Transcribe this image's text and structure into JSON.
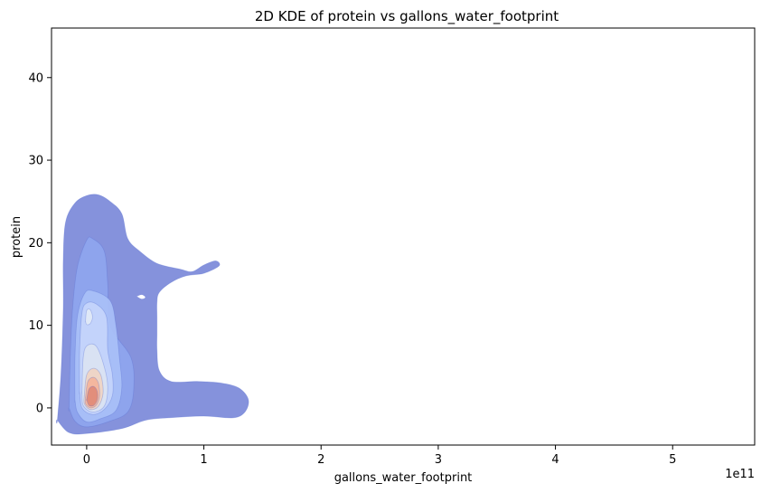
{
  "chart_data": {
    "type": "heatmap",
    "title": "2D KDE of protein vs gallons_water_footprint",
    "xlabel": "gallons_water_footprint",
    "ylabel": "protein",
    "x_offset_label": "1e11",
    "xlim": [
      -0.3,
      5.7
    ],
    "ylim": [
      -4.5,
      46
    ],
    "x_ticks": [
      0,
      1,
      2,
      3,
      4,
      5
    ],
    "y_ticks": [
      0,
      10,
      20,
      30,
      40
    ],
    "colormap": "coolwarm",
    "filled_contours": true,
    "grid": false,
    "contour_levels": [
      {
        "level": 1,
        "color": "#7b89d9",
        "points": [
          [
            -0.25,
            -1.5
          ],
          [
            -0.22,
            4
          ],
          [
            -0.2,
            12
          ],
          [
            -0.2,
            18
          ],
          [
            -0.18,
            22.5
          ],
          [
            -0.1,
            24.8
          ],
          [
            0,
            25.7
          ],
          [
            0.1,
            25.8
          ],
          [
            0.2,
            25
          ],
          [
            0.3,
            23.5
          ],
          [
            0.35,
            20.5
          ],
          [
            0.45,
            19
          ],
          [
            0.6,
            17.5
          ],
          [
            0.8,
            16.8
          ],
          [
            0.9,
            16.5
          ],
          [
            1.0,
            17.3
          ],
          [
            1.1,
            17.8
          ],
          [
            1.13,
            17.2
          ],
          [
            1.0,
            16.3
          ],
          [
            0.85,
            16
          ],
          [
            0.72,
            15.2
          ],
          [
            0.62,
            14
          ],
          [
            0.6,
            12.8
          ],
          [
            0.6,
            11
          ],
          [
            0.6,
            9
          ],
          [
            0.6,
            7
          ],
          [
            0.62,
            4.5
          ],
          [
            0.72,
            3.2
          ],
          [
            0.95,
            3.2
          ],
          [
            1.15,
            3
          ],
          [
            1.3,
            2.4
          ],
          [
            1.38,
            1
          ],
          [
            1.35,
            -0.5
          ],
          [
            1.25,
            -1.2
          ],
          [
            1.0,
            -1
          ],
          [
            0.7,
            -1.2
          ],
          [
            0.5,
            -1.5
          ],
          [
            0.3,
            -2.5
          ],
          [
            0,
            -3.1
          ],
          [
            -0.15,
            -3
          ],
          [
            -0.25,
            -1.5
          ]
        ]
      },
      {
        "level": 2,
        "color": "#8fa6ee",
        "points": [
          [
            -0.15,
            0
          ],
          [
            -0.14,
            6
          ],
          [
            -0.12,
            12
          ],
          [
            -0.08,
            17
          ],
          [
            0,
            20.3
          ],
          [
            0.05,
            20.5
          ],
          [
            0.15,
            19
          ],
          [
            0.18,
            15
          ],
          [
            0.2,
            10
          ],
          [
            0.38,
            6
          ],
          [
            0.4,
            2
          ],
          [
            0.35,
            -0.5
          ],
          [
            0.2,
            -1.6
          ],
          [
            0,
            -2.3
          ],
          [
            -0.1,
            -1.6
          ],
          [
            -0.15,
            0
          ]
        ]
      },
      {
        "level": 3,
        "color": "#a9c0f7",
        "points": [
          [
            -0.1,
            1
          ],
          [
            -0.1,
            6
          ],
          [
            -0.08,
            11
          ],
          [
            -0.02,
            13.8
          ],
          [
            0.05,
            14.2
          ],
          [
            0.2,
            13
          ],
          [
            0.25,
            10
          ],
          [
            0.28,
            6
          ],
          [
            0.3,
            2.5
          ],
          [
            0.25,
            -0.3
          ],
          [
            0.12,
            -1.3
          ],
          [
            0,
            -1.7
          ],
          [
            -0.08,
            -0.5
          ],
          [
            -0.1,
            1
          ]
        ]
      },
      {
        "level": 4,
        "color": "#c6d5fb",
        "points": [
          [
            -0.06,
            2
          ],
          [
            -0.06,
            7
          ],
          [
            -0.04,
            11.5
          ],
          [
            0,
            12.7
          ],
          [
            0.08,
            12.6
          ],
          [
            0.17,
            11
          ],
          [
            0.18,
            7
          ],
          [
            0.22,
            4
          ],
          [
            0.22,
            1.5
          ],
          [
            0.15,
            -0.2
          ],
          [
            0.05,
            -0.8
          ],
          [
            -0.04,
            0
          ],
          [
            -0.06,
            2
          ]
        ]
      },
      {
        "level": 5,
        "color": "#dbe3f2",
        "points": [
          [
            -0.04,
            2
          ],
          [
            -0.03,
            6
          ],
          [
            0,
            7.5
          ],
          [
            0.08,
            7.5
          ],
          [
            0.15,
            5
          ],
          [
            0.18,
            2.5
          ],
          [
            0.15,
            0.2
          ],
          [
            0.05,
            -0.5
          ],
          [
            -0.03,
            0.3
          ],
          [
            -0.04,
            2
          ]
        ]
      },
      {
        "level": 6,
        "color": "#f0d4c3",
        "points": [
          [
            -0.02,
            1.5
          ],
          [
            0,
            4
          ],
          [
            0.06,
            4.8
          ],
          [
            0.12,
            4
          ],
          [
            0.14,
            1.8
          ],
          [
            0.1,
            0.2
          ],
          [
            0.03,
            -0.2
          ],
          [
            -0.02,
            0.5
          ],
          [
            -0.02,
            1.5
          ]
        ]
      },
      {
        "level": 7,
        "color": "#f4b49a",
        "points": [
          [
            -0.01,
            1.3
          ],
          [
            0.01,
            3.2
          ],
          [
            0.06,
            3.7
          ],
          [
            0.1,
            3
          ],
          [
            0.11,
            1.4
          ],
          [
            0.08,
            0.3
          ],
          [
            0.03,
            0
          ],
          [
            -0.01,
            0.5
          ],
          [
            -0.01,
            1.3
          ]
        ]
      },
      {
        "level": 8,
        "color": "#e08a78",
        "points": [
          [
            0,
            1
          ],
          [
            0.02,
            2.3
          ],
          [
            0.06,
            2.6
          ],
          [
            0.09,
            2
          ],
          [
            0.09,
            1
          ],
          [
            0.06,
            0.3
          ],
          [
            0.02,
            0.3
          ],
          [
            0,
            1
          ]
        ]
      }
    ],
    "inner_highlight": {
      "color": "#e2e9f6",
      "points": [
        [
          -0.01,
          10.5
        ],
        [
          0,
          11.8
        ],
        [
          0.03,
          11.9
        ],
        [
          0.05,
          11
        ],
        [
          0.03,
          10.2
        ],
        [
          0,
          10.1
        ],
        [
          -0.01,
          10.5
        ]
      ]
    },
    "gap": {
      "color": "#ffffff",
      "points": [
        [
          0.43,
          13.5
        ],
        [
          0.47,
          13.7
        ],
        [
          0.5,
          13.4
        ],
        [
          0.47,
          13.2
        ],
        [
          0.43,
          13.5
        ]
      ]
    }
  }
}
